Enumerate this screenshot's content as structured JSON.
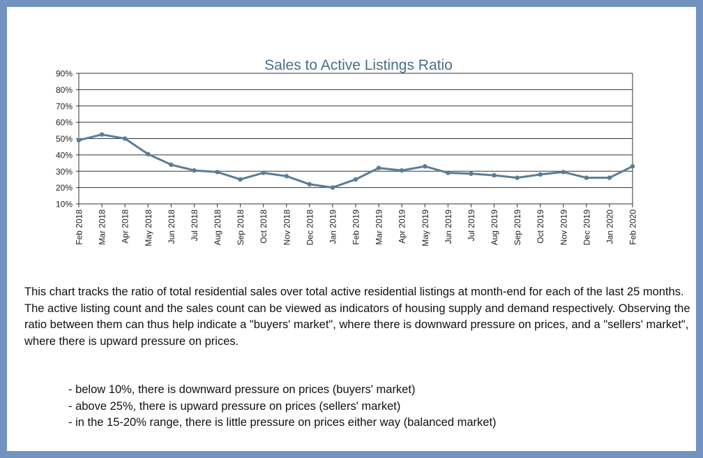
{
  "chart_data": {
    "type": "line",
    "title": "Sales to Active Listings Ratio",
    "xlabel": "",
    "ylabel": "",
    "ylim": [
      10,
      90
    ],
    "yticks": [
      "10%",
      "20%",
      "30%",
      "40%",
      "50%",
      "60%",
      "70%",
      "80%",
      "90%"
    ],
    "grid": true,
    "categories": [
      "Feb 2018",
      "Mar 2018",
      "Apr 2018",
      "May 2018",
      "Jun 2018",
      "Jul 2018",
      "Aug 2018",
      "Sep 2018",
      "Oct 2018",
      "Nov 2018",
      "Dec 2018",
      "Jan 2019",
      "Feb 2019",
      "Mar 2019",
      "Apr 2019",
      "May 2019",
      "Jun 2019",
      "Jul 2019",
      "Aug 2019",
      "Sep 2019",
      "Oct 2019",
      "Nov 2019",
      "Dec 2019",
      "Jan 2020",
      "Feb 2020"
    ],
    "series": [
      {
        "values": [
          49,
          52.5,
          50,
          40.5,
          34,
          30.5,
          29.5,
          25,
          29,
          27,
          22,
          20,
          25,
          32,
          30.5,
          33,
          29,
          28.5,
          27.5,
          26,
          28,
          29.5,
          26,
          26,
          33
        ],
        "color": "#5a7d96"
      }
    ]
  },
  "description": {
    "paragraph1": "This chart tracks the ratio of total residential sales over total active residential listings at month-end for each of the last 25 months.",
    "paragraph2": "The active listing count and the sales count can be viewed as indicators of housing supply and demand respectively.  Observing the ratio between them can thus help indicate a \"buyers' market\", where there is downward pressure on prices, and a \"sellers' market\", where there is upward pressure on prices."
  },
  "market_ranges": [
    "- below 10%, there is downward pressure on prices (buyers' market)",
    "- above 25%, there is upward pressure on prices (sellers' market)",
    "- in the 15-20% range, there is little pressure on prices either way (balanced market)"
  ]
}
